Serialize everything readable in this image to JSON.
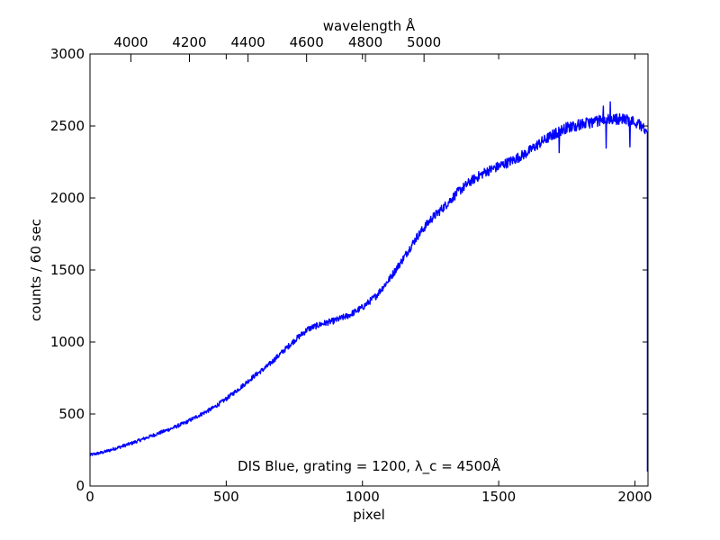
{
  "chart_data": {
    "type": "line",
    "xlabel": "pixel",
    "ylabel": "counts / 60 sec",
    "top_axis_label": "wavelength Å",
    "annotation": "DIS Blue, grating = 1200, λ_c = 4500Å",
    "xlim": [
      0,
      2048
    ],
    "ylim": [
      0,
      3000
    ],
    "x_ticks": [
      0,
      500,
      1000,
      1500,
      2000
    ],
    "y_ticks": [
      0,
      500,
      1000,
      1500,
      2000,
      2500,
      3000
    ],
    "top_ticks": [
      {
        "label": "4000",
        "pixel": 150
      },
      {
        "label": "4200",
        "pixel": 365
      },
      {
        "label": "4400",
        "pixel": 580
      },
      {
        "label": "4600",
        "pixel": 795
      },
      {
        "label": "4800",
        "pixel": 1011
      },
      {
        "label": "5000",
        "pixel": 1226
      }
    ],
    "line_color": "#0000ff",
    "series": [
      {
        "x": [
          0,
          50,
          100,
          150,
          200,
          250,
          300,
          350,
          400,
          450,
          500,
          550,
          600,
          650,
          700,
          750,
          800,
          850,
          900,
          950,
          1000,
          1050,
          1100,
          1150,
          1200,
          1250,
          1300,
          1350,
          1400,
          1450,
          1500,
          1550,
          1600,
          1650,
          1700,
          1750,
          1800,
          1850,
          1900,
          1950,
          2000,
          2040,
          2046
        ],
        "y": [
          215,
          235,
          265,
          295,
          330,
          365,
          400,
          440,
          490,
          540,
          605,
          680,
          760,
          830,
          920,
          1010,
          1090,
          1125,
          1150,
          1185,
          1240,
          1320,
          1440,
          1580,
          1730,
          1850,
          1940,
          2040,
          2120,
          2180,
          2220,
          2260,
          2310,
          2380,
          2440,
          2490,
          2510,
          2530,
          2545,
          2550,
          2530,
          2480,
          100
        ]
      }
    ]
  }
}
